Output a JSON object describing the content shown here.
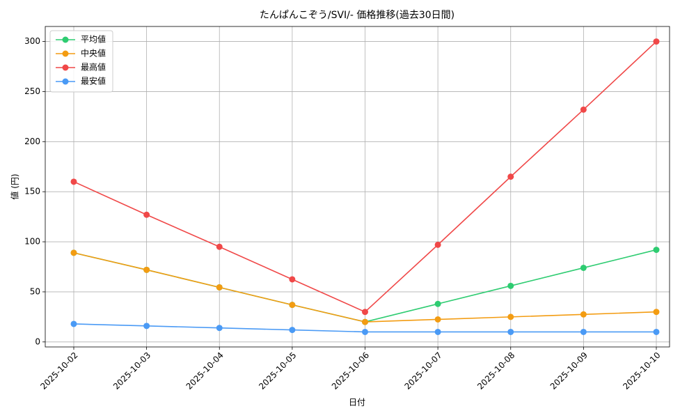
{
  "chart_data": {
    "type": "line",
    "title": "たんぱんこぞう/SVI/- 価格推移(過去30日間)",
    "x_label": "日付",
    "y_label": "値 (円)",
    "categories": [
      "2025-10-02",
      "2025-10-03",
      "2025-10-04",
      "2025-10-05",
      "2025-10-06",
      "2025-10-07",
      "2025-10-08",
      "2025-10-09",
      "2025-10-10"
    ],
    "series": [
      {
        "name": "平均値",
        "color": "#2ecc71",
        "values": [
          89,
          72,
          54.5,
          37,
          20,
          38,
          56,
          74,
          92
        ]
      },
      {
        "name": "中央値",
        "color": "#f39c12",
        "values": [
          89,
          72,
          54.5,
          37,
          20,
          22.5,
          25,
          27.5,
          30
        ]
      },
      {
        "name": "最高値",
        "color": "#f04848",
        "values": [
          160,
          127,
          95,
          62.5,
          30,
          97,
          165,
          232,
          300
        ]
      },
      {
        "name": "最安値",
        "color": "#4a9af5",
        "values": [
          18,
          16,
          14,
          12,
          10,
          10,
          10,
          10,
          10
        ]
      }
    ],
    "ylim": [
      -5,
      315
    ],
    "yticks": [
      0,
      50,
      100,
      150,
      200,
      250,
      300
    ],
    "grid": true,
    "legend": "upper left"
  }
}
